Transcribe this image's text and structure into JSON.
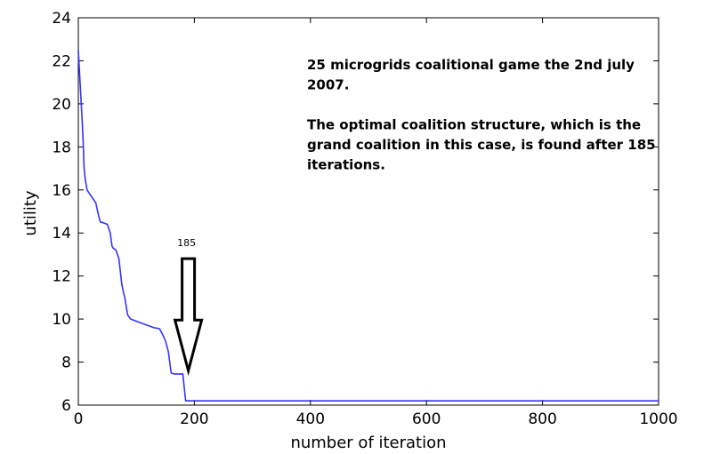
{
  "chart_data": {
    "type": "line",
    "title": "",
    "xlabel": "number of iteration",
    "ylabel": "utility",
    "xlim": [
      0,
      1000
    ],
    "ylim": [
      6,
      24
    ],
    "x_ticks": [
      0,
      200,
      400,
      600,
      800,
      1000
    ],
    "y_ticks": [
      6,
      8,
      10,
      12,
      14,
      16,
      18,
      20,
      22,
      24
    ],
    "grid": false,
    "series": [
      {
        "color": "#3333ff",
        "x": [
          0,
          2,
          5,
          8,
          10,
          12,
          15,
          20,
          25,
          30,
          35,
          38,
          40,
          50,
          55,
          58,
          60,
          65,
          70,
          75,
          78,
          80,
          85,
          90,
          95,
          100,
          110,
          120,
          130,
          140,
          145,
          150,
          155,
          160,
          165,
          175,
          180,
          185,
          1000
        ],
        "y": [
          22.5,
          21.5,
          20.0,
          18.5,
          17.0,
          16.5,
          16.0,
          15.8,
          15.6,
          15.4,
          14.8,
          14.5,
          14.5,
          14.4,
          14.0,
          13.4,
          13.3,
          13.2,
          12.8,
          11.6,
          11.2,
          11.0,
          10.2,
          10.0,
          9.95,
          9.9,
          9.8,
          9.7,
          9.6,
          9.55,
          9.3,
          9.0,
          8.5,
          7.5,
          7.45,
          7.45,
          7.45,
          6.2,
          6.2
        ]
      }
    ],
    "annotations": [
      {
        "id": "description",
        "lines": [
          "25 microgrids coalitional game the 2nd july",
          "2007.",
          "",
          "The optimal coalition structure, which is the",
          "grand coalition in this case, is found after 185",
          "iterations."
        ]
      },
      {
        "id": "arrow",
        "label": "185",
        "x": 185,
        "y_from": 12.6,
        "y_to": 7.6
      }
    ]
  }
}
